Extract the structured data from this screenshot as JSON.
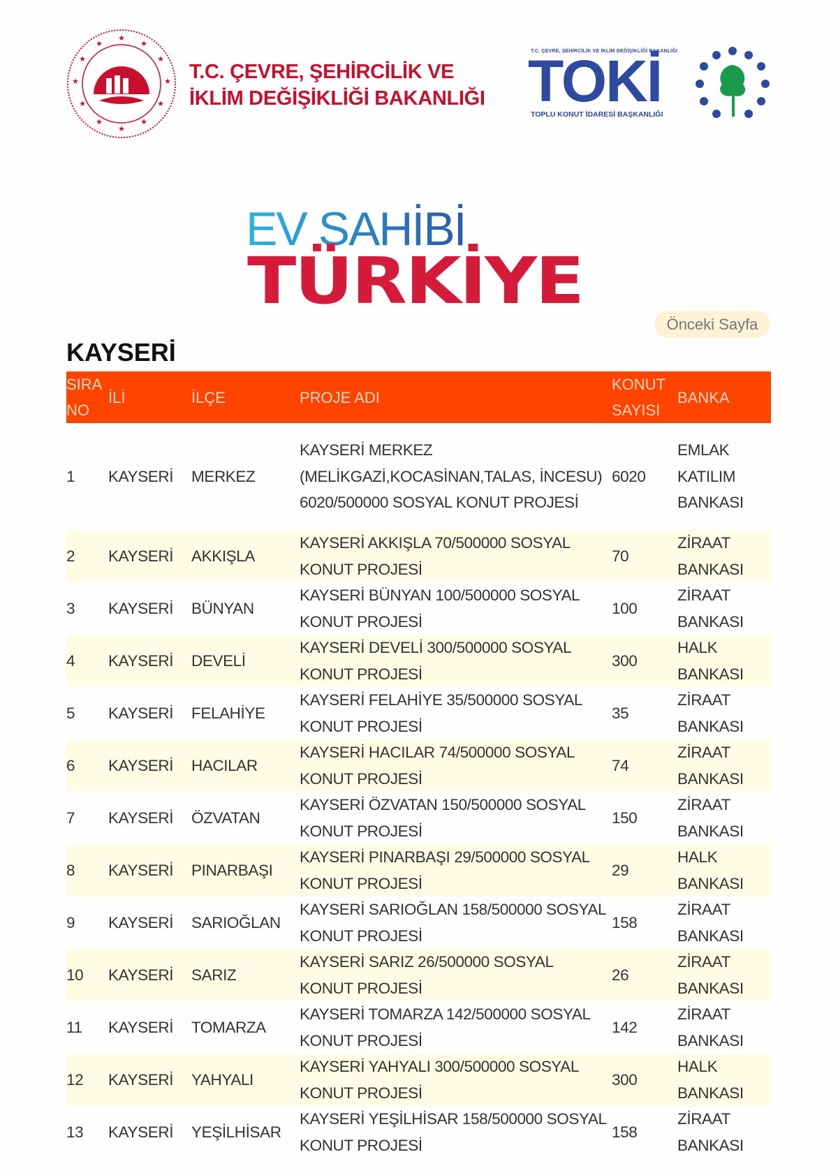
{
  "header": {
    "ministry_line1": "T.C. ÇEVRE, ŞEHİRCİLİK VE",
    "ministry_line2": "İKLİM DEĞİŞİKLİĞİ BAKANLIĞI",
    "toki_small": "T.C. ÇEVRE, ŞEHİRCİLİK VE İKLİM DEĞİŞİKLİĞİ BAKANLIĞI",
    "toki_logo": "TOKİ",
    "toki_sub": "TOPLU KONUT İDARESİ BAŞKANLIĞI",
    "campaign_line1": "EV SAHİBİ",
    "campaign_line2": "TÜRKİYE"
  },
  "prev_page_label": "Önceki Sayfa",
  "city_title": "KAYSERİ",
  "colors": {
    "header_bg": "#ff4400",
    "ministry_red": "#c8102e",
    "toki_blue": "#2b4aa0",
    "stripe": "#fdfde6"
  },
  "table": {
    "headers": {
      "sira": "SIRA NO",
      "ili": "İLİ",
      "ilce": "İLÇE",
      "proje": "PROJE ADI",
      "konut": "KONUT SAYISI",
      "banka": "BANKA"
    },
    "rows": [
      {
        "no": "1",
        "il": "KAYSERİ",
        "ilce": "MERKEZ",
        "proje": "KAYSERİ MERKEZ (MELİKGAZİ,KOCASİNAN,TALAS, İNCESU) 6020/500000 SOSYAL KONUT PROJESİ",
        "konut": "6020",
        "banka": "EMLAK KATILIM BANKASI"
      },
      {
        "no": "2",
        "il": "KAYSERİ",
        "ilce": "AKKIŞLA",
        "proje": "KAYSERİ AKKIŞLA 70/500000 SOSYAL KONUT PROJESİ",
        "konut": "70",
        "banka": "ZİRAAT BANKASI"
      },
      {
        "no": "3",
        "il": "KAYSERİ",
        "ilce": "BÜNYAN",
        "proje": "KAYSERİ BÜNYAN 100/500000 SOSYAL KONUT PROJESİ",
        "konut": "100",
        "banka": "ZİRAAT BANKASI"
      },
      {
        "no": "4",
        "il": "KAYSERİ",
        "ilce": "DEVELİ",
        "proje": "KAYSERİ DEVELİ 300/500000 SOSYAL KONUT PROJESİ",
        "konut": "300",
        "banka": "HALK BANKASI"
      },
      {
        "no": "5",
        "il": "KAYSERİ",
        "ilce": "FELAHİYE",
        "proje": "KAYSERİ FELAHİYE 35/500000 SOSYAL KONUT PROJESİ",
        "konut": "35",
        "banka": "ZİRAAT BANKASI"
      },
      {
        "no": "6",
        "il": "KAYSERİ",
        "ilce": "HACILAR",
        "proje": "KAYSERİ HACILAR 74/500000 SOSYAL KONUT PROJESİ",
        "konut": "74",
        "banka": "ZİRAAT BANKASI"
      },
      {
        "no": "7",
        "il": "KAYSERİ",
        "ilce": "ÖZVATAN",
        "proje": "KAYSERİ ÖZVATAN 150/500000 SOSYAL KONUT PROJESİ",
        "konut": "150",
        "banka": "ZİRAAT BANKASI"
      },
      {
        "no": "8",
        "il": "KAYSERİ",
        "ilce": "PINARBAŞI",
        "proje": "KAYSERİ PINARBAŞI 29/500000 SOSYAL KONUT PROJESİ",
        "konut": "29",
        "banka": "HALK BANKASI"
      },
      {
        "no": "9",
        "il": "KAYSERİ",
        "ilce": "SARIOĞLAN",
        "proje": "KAYSERİ SARIOĞLAN 158/500000 SOSYAL KONUT PROJESİ",
        "konut": "158",
        "banka": "ZİRAAT BANKASI"
      },
      {
        "no": "10",
        "il": "KAYSERİ",
        "ilce": "SARIZ",
        "proje": "KAYSERİ SARIZ 26/500000 SOSYAL KONUT PROJESİ",
        "konut": "26",
        "banka": "ZİRAAT BANKASI"
      },
      {
        "no": "11",
        "il": "KAYSERİ",
        "ilce": "TOMARZA",
        "proje": "KAYSERİ TOMARZA 142/500000 SOSYAL KONUT PROJESİ",
        "konut": "142",
        "banka": "ZİRAAT BANKASI"
      },
      {
        "no": "12",
        "il": "KAYSERİ",
        "ilce": "YAHYALI",
        "proje": "KAYSERİ YAHYALI 300/500000 SOSYAL KONUT PROJESİ",
        "konut": "300",
        "banka": "HALK BANKASI"
      },
      {
        "no": "13",
        "il": "KAYSERİ",
        "ilce": "YEŞİLHİSAR",
        "proje": "KAYSERİ YEŞİLHİSAR 158/500000 SOSYAL KONUT PROJESİ",
        "konut": "158",
        "banka": "ZİRAAT BANKASI"
      }
    ]
  }
}
